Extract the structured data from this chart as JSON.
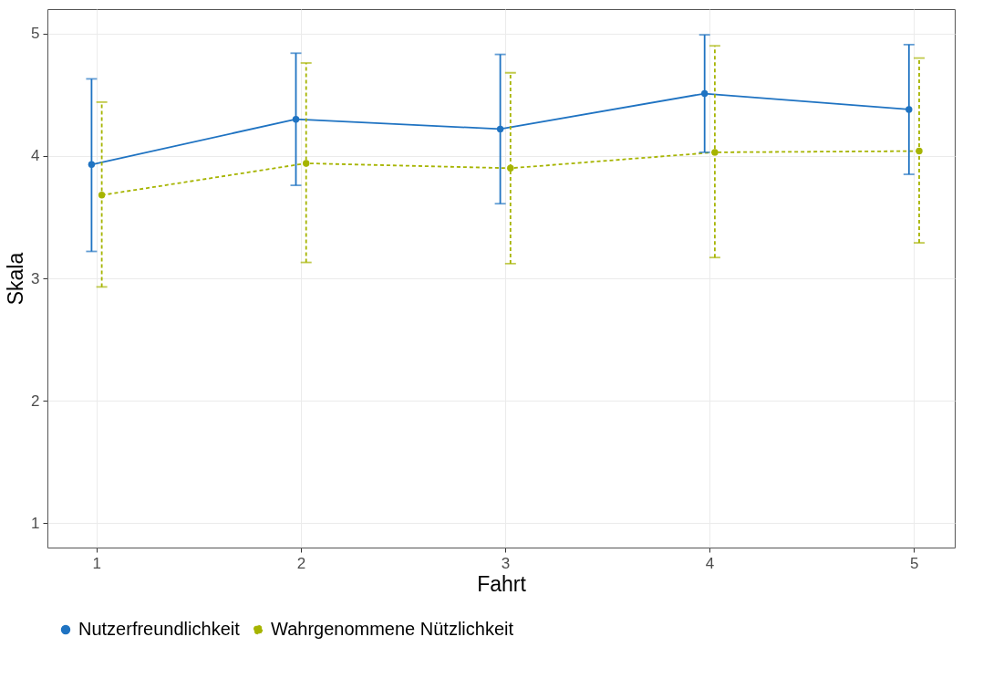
{
  "chart_data": {
    "type": "line",
    "xlabel": "Fahrt",
    "ylabel": "Skala",
    "xlim": [
      0.76,
      5.2
    ],
    "ylim": [
      0.8,
      5.2
    ],
    "xticks": [
      1,
      2,
      3,
      4,
      5
    ],
    "yticks": [
      1,
      2,
      3,
      4,
      5
    ],
    "grid": true,
    "legend": "bottom",
    "marker": "circle",
    "series": [
      {
        "name": "Nutzerfreundlichkeit",
        "color": "#1f73c2",
        "line_style": "solid",
        "x": [
          0.976,
          1.976,
          2.976,
          3.976,
          4.976
        ],
        "values": [
          3.93,
          4.3,
          4.22,
          4.51,
          4.38
        ],
        "errors": [
          [
            3.22,
            4.63
          ],
          [
            3.76,
            4.84
          ],
          [
            3.61,
            4.83
          ],
          [
            4.03,
            4.99
          ],
          [
            3.85,
            4.91
          ]
        ]
      },
      {
        "name": "Wahrgenommene Nützlichkeit",
        "color": "#a6b400",
        "line_style": "dashed",
        "x": [
          1.026,
          2.026,
          3.026,
          4.026,
          5.026
        ],
        "values": [
          3.68,
          3.94,
          3.9,
          4.03,
          4.04
        ],
        "errors": [
          [
            2.93,
            4.44
          ],
          [
            3.13,
            4.76
          ],
          [
            3.12,
            4.68
          ],
          [
            3.17,
            4.9
          ],
          [
            3.29,
            4.8
          ]
        ]
      }
    ]
  }
}
